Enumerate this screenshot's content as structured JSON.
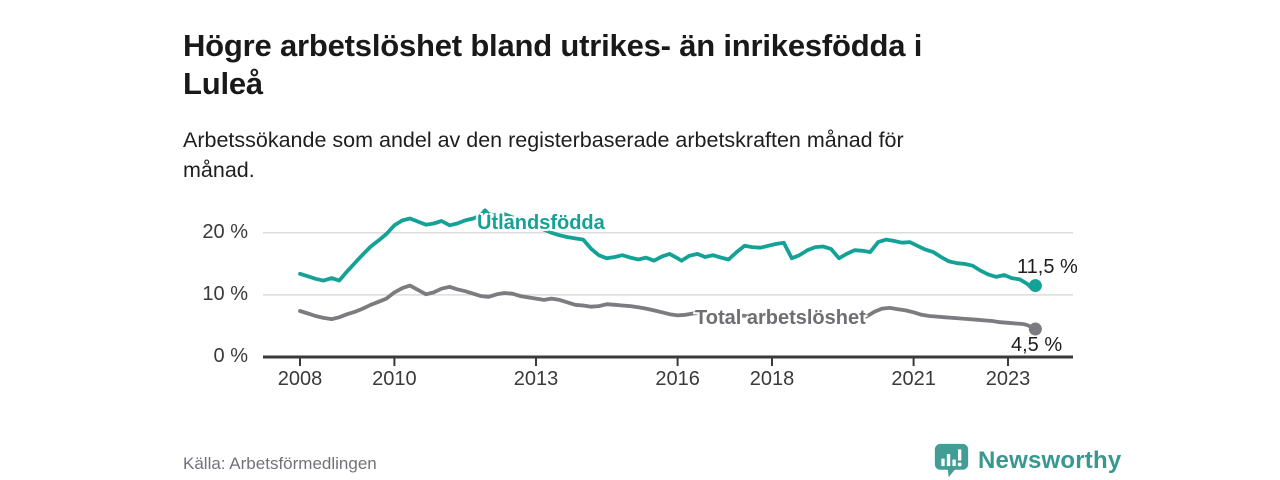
{
  "header": {
    "title_lines": [
      "Högre arbetslöshet bland utrikes- än inrikesfödda i",
      "Luleå"
    ],
    "subtitle_lines": [
      "Arbetssökande som andel av den registerbaserade arbetskraften månad för",
      "månad."
    ]
  },
  "footer": {
    "source": "Källa: Arbetsförmedlingen",
    "brand": "Newsworthy",
    "brand_icon": "bar-chart-speech-bubble-icon"
  },
  "colors": {
    "series_foreign": "#14a296",
    "series_total": "#7b7b80",
    "label_total": "#6e6e74",
    "axis": "#3a3a3a",
    "gridline": "#dcdcdc",
    "brand_teal": "#419d95"
  },
  "chart_data": {
    "type": "line",
    "title": "Högre arbetslöshet bland utrikes- än inrikesfödda i Luleå",
    "subtitle": "Arbetssökande som andel av den registerbaserade arbetskraften månad för månad.",
    "unit": "%",
    "grid": "horizontal-only",
    "x_range": [
      2007.2,
      2024.4
    ],
    "ylim": [
      0,
      25.6
    ],
    "y_ticks": [
      {
        "value": 0,
        "label": "0 %"
      },
      {
        "value": 10,
        "label": "10 %"
      },
      {
        "value": 20,
        "label": "20 %"
      }
    ],
    "x_ticks": [
      {
        "year": 2008,
        "label": "2008"
      },
      {
        "year": 2010,
        "label": "2010"
      },
      {
        "year": 2013,
        "label": "2013"
      },
      {
        "year": 2016,
        "label": "2016"
      },
      {
        "year": 2018,
        "label": "2018"
      },
      {
        "year": 2021,
        "label": "2021"
      },
      {
        "year": 2023,
        "label": "2023"
      }
    ],
    "series": [
      {
        "name": "Utlandsfödda",
        "color_key": "series_foreign",
        "end_label": "11,5 %",
        "end_value": 11.5,
        "points": [
          [
            2008.0,
            13.4
          ],
          [
            2008.17,
            13.0
          ],
          [
            2008.33,
            12.6
          ],
          [
            2008.5,
            12.3
          ],
          [
            2008.67,
            12.7
          ],
          [
            2008.83,
            12.3
          ],
          [
            2009.0,
            13.8
          ],
          [
            2009.17,
            15.2
          ],
          [
            2009.33,
            16.5
          ],
          [
            2009.5,
            17.8
          ],
          [
            2009.67,
            18.8
          ],
          [
            2009.83,
            19.8
          ],
          [
            2010.0,
            21.2
          ],
          [
            2010.17,
            22.0
          ],
          [
            2010.33,
            22.3
          ],
          [
            2010.5,
            21.8
          ],
          [
            2010.67,
            21.3
          ],
          [
            2010.83,
            21.5
          ],
          [
            2011.0,
            21.9
          ],
          [
            2011.17,
            21.2
          ],
          [
            2011.33,
            21.5
          ],
          [
            2011.5,
            22.0
          ],
          [
            2011.67,
            22.3
          ],
          [
            2011.83,
            22.8
          ],
          [
            2011.92,
            23.6
          ],
          [
            2012.0,
            23.0
          ],
          [
            2012.17,
            22.8
          ],
          [
            2012.33,
            23.0
          ],
          [
            2012.5,
            22.5
          ],
          [
            2012.67,
            22.1
          ],
          [
            2012.83,
            21.6
          ],
          [
            2013.0,
            21.0
          ],
          [
            2013.17,
            20.5
          ],
          [
            2013.33,
            20.0
          ],
          [
            2013.5,
            19.6
          ],
          [
            2013.67,
            19.3
          ],
          [
            2013.83,
            19.1
          ],
          [
            2014.0,
            18.9
          ],
          [
            2014.17,
            17.4
          ],
          [
            2014.33,
            16.4
          ],
          [
            2014.5,
            15.9
          ],
          [
            2014.67,
            16.1
          ],
          [
            2014.83,
            16.4
          ],
          [
            2015.0,
            16.0
          ],
          [
            2015.17,
            15.7
          ],
          [
            2015.33,
            16.0
          ],
          [
            2015.5,
            15.5
          ],
          [
            2015.67,
            16.2
          ],
          [
            2015.83,
            16.6
          ],
          [
            2016.0,
            15.9
          ],
          [
            2016.08,
            15.5
          ],
          [
            2016.25,
            16.3
          ],
          [
            2016.42,
            16.6
          ],
          [
            2016.58,
            16.1
          ],
          [
            2016.75,
            16.4
          ],
          [
            2016.92,
            16.0
          ],
          [
            2017.08,
            15.7
          ],
          [
            2017.25,
            16.9
          ],
          [
            2017.42,
            17.9
          ],
          [
            2017.58,
            17.7
          ],
          [
            2017.75,
            17.6
          ],
          [
            2017.92,
            17.9
          ],
          [
            2018.08,
            18.2
          ],
          [
            2018.25,
            18.4
          ],
          [
            2018.42,
            15.9
          ],
          [
            2018.58,
            16.4
          ],
          [
            2018.75,
            17.2
          ],
          [
            2018.92,
            17.7
          ],
          [
            2019.08,
            17.8
          ],
          [
            2019.25,
            17.4
          ],
          [
            2019.42,
            15.9
          ],
          [
            2019.58,
            16.6
          ],
          [
            2019.75,
            17.2
          ],
          [
            2019.92,
            17.1
          ],
          [
            2020.08,
            16.9
          ],
          [
            2020.25,
            18.5
          ],
          [
            2020.42,
            18.9
          ],
          [
            2020.58,
            18.7
          ],
          [
            2020.75,
            18.4
          ],
          [
            2020.92,
            18.5
          ],
          [
            2021.08,
            17.9
          ],
          [
            2021.25,
            17.3
          ],
          [
            2021.42,
            16.9
          ],
          [
            2021.58,
            16.1
          ],
          [
            2021.75,
            15.4
          ],
          [
            2021.92,
            15.1
          ],
          [
            2022.08,
            15.0
          ],
          [
            2022.25,
            14.7
          ],
          [
            2022.42,
            13.9
          ],
          [
            2022.58,
            13.3
          ],
          [
            2022.75,
            12.9
          ],
          [
            2022.92,
            13.2
          ],
          [
            2023.08,
            12.7
          ],
          [
            2023.25,
            12.5
          ],
          [
            2023.42,
            11.7
          ],
          [
            2023.5,
            11.1
          ],
          [
            2023.58,
            11.5
          ]
        ]
      },
      {
        "name": "Total arbetslöshet",
        "color_key": "series_total",
        "end_label": "4,5 %",
        "end_value": 4.5,
        "points": [
          [
            2008.0,
            7.4
          ],
          [
            2008.17,
            7.0
          ],
          [
            2008.33,
            6.6
          ],
          [
            2008.5,
            6.3
          ],
          [
            2008.67,
            6.1
          ],
          [
            2008.83,
            6.4
          ],
          [
            2009.0,
            6.9
          ],
          [
            2009.17,
            7.3
          ],
          [
            2009.33,
            7.8
          ],
          [
            2009.5,
            8.4
          ],
          [
            2009.67,
            8.9
          ],
          [
            2009.83,
            9.4
          ],
          [
            2010.0,
            10.4
          ],
          [
            2010.17,
            11.1
          ],
          [
            2010.33,
            11.5
          ],
          [
            2010.5,
            10.8
          ],
          [
            2010.67,
            10.1
          ],
          [
            2010.83,
            10.4
          ],
          [
            2011.0,
            11.0
          ],
          [
            2011.17,
            11.3
          ],
          [
            2011.33,
            10.9
          ],
          [
            2011.5,
            10.6
          ],
          [
            2011.67,
            10.2
          ],
          [
            2011.83,
            9.8
          ],
          [
            2012.0,
            9.7
          ],
          [
            2012.17,
            10.1
          ],
          [
            2012.33,
            10.3
          ],
          [
            2012.5,
            10.2
          ],
          [
            2012.67,
            9.8
          ],
          [
            2012.83,
            9.6
          ],
          [
            2013.0,
            9.4
          ],
          [
            2013.17,
            9.2
          ],
          [
            2013.33,
            9.4
          ],
          [
            2013.5,
            9.2
          ],
          [
            2013.67,
            8.8
          ],
          [
            2013.83,
            8.4
          ],
          [
            2014.0,
            8.3
          ],
          [
            2014.17,
            8.1
          ],
          [
            2014.33,
            8.2
          ],
          [
            2014.5,
            8.5
          ],
          [
            2014.67,
            8.4
          ],
          [
            2014.83,
            8.3
          ],
          [
            2015.0,
            8.2
          ],
          [
            2015.17,
            8.0
          ],
          [
            2015.33,
            7.8
          ],
          [
            2015.5,
            7.5
          ],
          [
            2015.67,
            7.2
          ],
          [
            2015.83,
            6.9
          ],
          [
            2016.0,
            6.7
          ],
          [
            2016.17,
            6.8
          ],
          [
            2016.33,
            7.0
          ],
          [
            2016.5,
            7.1
          ],
          [
            2016.67,
            7.0
          ],
          [
            2016.83,
            6.9
          ],
          [
            2017.0,
            6.8
          ],
          [
            2017.25,
            6.7
          ],
          [
            2017.5,
            6.6
          ],
          [
            2017.75,
            6.5
          ],
          [
            2018.0,
            6.4
          ],
          [
            2018.25,
            6.3
          ],
          [
            2018.5,
            6.2
          ],
          [
            2018.75,
            6.1
          ],
          [
            2019.0,
            6.0
          ],
          [
            2019.25,
            5.9
          ],
          [
            2019.5,
            5.9
          ],
          [
            2019.75,
            6.0
          ],
          [
            2020.0,
            6.5
          ],
          [
            2020.17,
            7.3
          ],
          [
            2020.33,
            7.8
          ],
          [
            2020.5,
            7.9
          ],
          [
            2020.67,
            7.7
          ],
          [
            2020.83,
            7.5
          ],
          [
            2021.0,
            7.2
          ],
          [
            2021.17,
            6.8
          ],
          [
            2021.33,
            6.6
          ],
          [
            2021.5,
            6.5
          ],
          [
            2021.67,
            6.4
          ],
          [
            2021.83,
            6.3
          ],
          [
            2022.0,
            6.2
          ],
          [
            2022.17,
            6.1
          ],
          [
            2022.33,
            6.0
          ],
          [
            2022.5,
            5.9
          ],
          [
            2022.67,
            5.8
          ],
          [
            2022.83,
            5.6
          ],
          [
            2023.0,
            5.5
          ],
          [
            2023.17,
            5.4
          ],
          [
            2023.33,
            5.3
          ],
          [
            2023.42,
            5.1
          ],
          [
            2023.5,
            4.8
          ],
          [
            2023.58,
            4.5
          ]
        ]
      }
    ],
    "legend_position": "inline-labels"
  }
}
